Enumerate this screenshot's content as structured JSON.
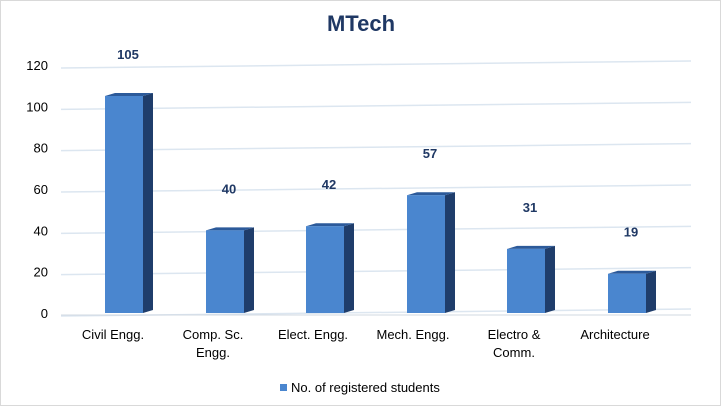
{
  "chart_data": {
    "type": "bar",
    "title": "MTech",
    "xlabel": "",
    "ylabel": "",
    "categories": [
      "Civil Engg.",
      "Comp. Sc. Engg.",
      "Elect. Engg.",
      "Mech. Engg.",
      "Electro & Comm.",
      "Architecture"
    ],
    "category_lines": [
      [
        "Civil Engg."
      ],
      [
        "Comp. Sc.",
        "Engg."
      ],
      [
        "Elect. Engg."
      ],
      [
        "Mech. Engg."
      ],
      [
        "Electro &",
        "Comm."
      ],
      [
        "Architecture"
      ]
    ],
    "series": [
      {
        "name": "No. of registered students",
        "values": [
          105,
          40,
          42,
          57,
          31,
          19
        ]
      }
    ],
    "value_labels": [
      "105",
      "40",
      "42",
      "57",
      "31",
      "19"
    ],
    "yticks": [
      0,
      20,
      40,
      60,
      80,
      100,
      120
    ],
    "ylim": [
      0,
      120
    ],
    "grid": true,
    "legend_position": "bottom",
    "colors": {
      "bar_front": "#4a86cf",
      "bar_side": "#1f3d6b",
      "bar_top": "#2c5a9a",
      "title": "#1f3864",
      "data_label": "#1f3864",
      "axis_text": "#000000",
      "grid": "#dce6f0"
    }
  }
}
